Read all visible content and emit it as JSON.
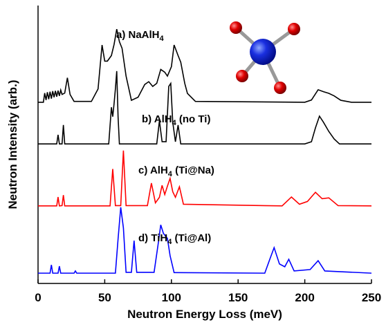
{
  "chart_data": {
    "type": "line",
    "xlabel": "Neutron Energy Loss (meV)",
    "ylabel": "Neutron Intensity (arb.)",
    "xlim": [
      0,
      250
    ],
    "xticks": [
      0,
      50,
      100,
      150,
      200,
      250
    ],
    "ylim": [
      0,
      100
    ],
    "series": [
      {
        "label": [
          "a) NaAlH",
          "4"
        ],
        "color": "#000000",
        "x": [
          0,
          4,
          5,
          6,
          7,
          8,
          9,
          10,
          11,
          12,
          13,
          14,
          15,
          16,
          17,
          18,
          20,
          22,
          24,
          27,
          40,
          45,
          48,
          50,
          52,
          55,
          57,
          59,
          61,
          63,
          66,
          70,
          75,
          80,
          83,
          86,
          89,
          92,
          95,
          97,
          100,
          102,
          105,
          107,
          110,
          112,
          118,
          200,
          205,
          210,
          214,
          218,
          222,
          227,
          235,
          250
        ],
        "values": [
          65.2,
          65.2,
          68.5,
          66,
          68.8,
          66.3,
          69,
          66.5,
          69.2,
          67,
          69.3,
          67.2,
          69.4,
          67.5,
          69.6,
          68,
          68.5,
          74,
          68,
          65.5,
          65.5,
          70,
          85.8,
          80,
          80,
          82,
          86,
          91.5,
          87,
          84.6,
          74.6,
          65.9,
          67,
          71.6,
          72.6,
          70.9,
          72,
          77,
          76,
          74.6,
          78,
          85.8,
          82,
          79.6,
          72,
          68.4,
          65.5,
          65.2,
          66,
          69.7,
          69,
          68.4,
          67.5,
          65.9,
          65.2,
          65.2
        ]
      },
      {
        "label": [
          "b)  AlH",
          "4",
          " (no Ti)"
        ],
        "color": "#000000",
        "x": [
          0,
          14,
          15,
          16,
          18,
          19,
          20,
          53,
          55,
          56,
          57,
          58,
          59,
          60,
          61,
          89,
          91,
          93,
          96,
          98,
          99.5,
          101,
          103,
          105,
          107,
          200,
          205,
          208,
          211,
          214,
          218,
          222,
          226,
          250
        ],
        "values": [
          50.2,
          50.2,
          53.5,
          50.2,
          50.2,
          57,
          50.2,
          50.2,
          63.4,
          60,
          64.7,
          70,
          76.4,
          60,
          50.2,
          50.2,
          58.5,
          51,
          51,
          70.9,
          72,
          58,
          51,
          57,
          50.2,
          50.2,
          51,
          56,
          60.2,
          58,
          54.7,
          52,
          50.2,
          50.2
        ],
        "yticks_hidden": null
      },
      {
        "label": [
          "c)  AlH",
          "4",
          " (Ti@Na)"
        ],
        "color": "#ff0000",
        "x": [
          0,
          14,
          15,
          16,
          18,
          19,
          20,
          54,
          56,
          58,
          62,
          64,
          66,
          82,
          85,
          88,
          91,
          93,
          95,
          97,
          99,
          101,
          103,
          106,
          109,
          183,
          190,
          196,
          202,
          208,
          213,
          218,
          225,
          250
        ],
        "values": [
          27.9,
          27.9,
          31.1,
          27.9,
          28,
          31.8,
          27.9,
          27.9,
          41.2,
          28,
          28,
          47.8,
          28,
          28,
          36.1,
          29,
          31,
          35.3,
          32,
          35,
          37.8,
          33,
          31,
          34.8,
          28.5,
          27.9,
          31.1,
          28.5,
          29.5,
          32.8,
          30.5,
          30.8,
          28,
          27.9
        ]
      },
      {
        "label": [
          "d)  TiH",
          "4",
          " (Ti@Al)"
        ],
        "color": "#0000ff",
        "x": [
          0,
          9,
          10,
          11,
          15,
          16,
          17,
          27,
          28,
          29,
          58,
          60,
          62,
          64,
          66,
          70,
          72,
          74,
          87,
          90,
          92,
          94,
          97,
          99,
          102,
          170,
          174,
          177,
          181,
          185,
          188,
          192,
          204,
          210,
          215,
          250
        ],
        "values": [
          3.7,
          3.7,
          6.7,
          3.7,
          3.7,
          6.2,
          3.7,
          3.7,
          4.5,
          3.7,
          3.7,
          16,
          27.4,
          20,
          4,
          4,
          15.4,
          4,
          4,
          14,
          21.1,
          18,
          16.2,
          10,
          3.9,
          3.7,
          9,
          12.9,
          7,
          6,
          8.7,
          4.5,
          5,
          8.2,
          4.5,
          3.7
        ]
      }
    ]
  }
}
